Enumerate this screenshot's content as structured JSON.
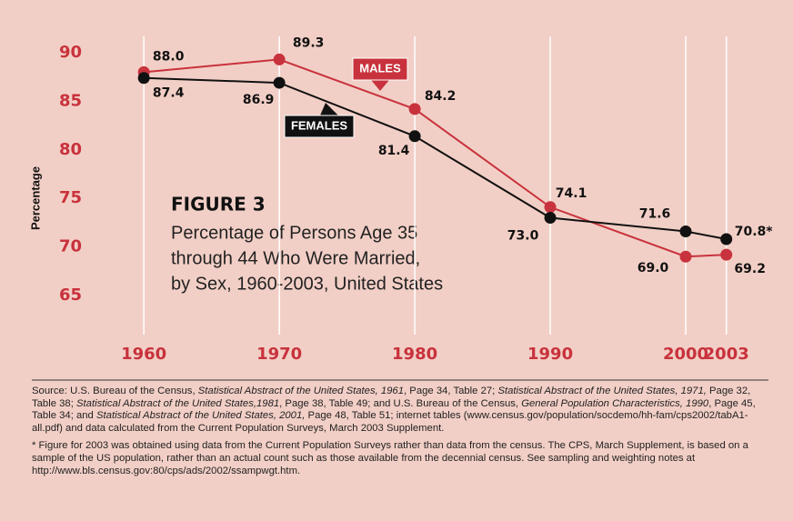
{
  "chart_data": {
    "type": "line",
    "title": "FIGURE 3",
    "subtitle_lines": [
      "Percentage of Persons Age 35",
      "through 44 Who Were Married,",
      "by Sex, 1960-2003, United States"
    ],
    "ylabel": "Percentage",
    "x": [
      1960,
      1970,
      1980,
      1990,
      2000,
      2003
    ],
    "xlim": [
      1952,
      2005
    ],
    "xticks": [
      1960,
      1970,
      1980,
      1990,
      2000,
      2003
    ],
    "ylim": [
      62,
      92
    ],
    "yticks": [
      65,
      70,
      75,
      80,
      85,
      90
    ],
    "grid": true,
    "series": [
      {
        "name": "MALES",
        "color": "#c8323c",
        "values": [
          88.0,
          89.3,
          84.2,
          74.1,
          69.0,
          69.2
        ],
        "value_labels": [
          "88.0",
          "89.3",
          "84.2",
          "74.1",
          "69.0",
          "69.2"
        ]
      },
      {
        "name": "FEMALES",
        "color": "#111111",
        "values": [
          87.4,
          86.9,
          81.4,
          73.0,
          71.6,
          70.8
        ],
        "value_labels": [
          "87.4",
          "86.9",
          "81.4",
          "73.0",
          "71.6",
          "70.8*"
        ]
      }
    ]
  },
  "notes": {
    "source": [
      {
        "text": "Source: U.S. Bureau of the Census, ",
        "italic": false
      },
      {
        "text": "Statistical Abstract of the United States, 1961",
        "italic": true
      },
      {
        "text": ", Page 34, Table 27; ",
        "italic": false
      },
      {
        "text": "Statistical Abstract of the United States, 1971,",
        "italic": true
      },
      {
        "text": " Page 32, Table 38; ",
        "italic": false
      },
      {
        "text": "Statistical Abstract of the United States,1981",
        "italic": true
      },
      {
        "text": ", Page 38, Table 49; and U.S. Bureau of the Census, ",
        "italic": false
      },
      {
        "text": "General Population Characteristics, 1990",
        "italic": true
      },
      {
        "text": ", Page 45, Table 34; and ",
        "italic": false
      },
      {
        "text": "Statistical Abstract of the United States, 2001,",
        "italic": true
      },
      {
        "text": " Page 48, Table 51; internet tables (www.census.gov/population/socdemo/hh-fam/cps2002/tabA1-all.pdf) and data calculated from the Current Population Surveys, March 2003 Supplement.",
        "italic": false
      }
    ],
    "footnote": "* Figure for 2003 was obtained using data from the Current Population Surveys rather than data from the census. The CPS, March Supplement, is based on a sample of the US population, rather than an actual count such as those available from the decennial census. See sampling and weighting notes at http://www.bls.census.gov:80/cps/ads/2002/ssampwgt.htm."
  }
}
